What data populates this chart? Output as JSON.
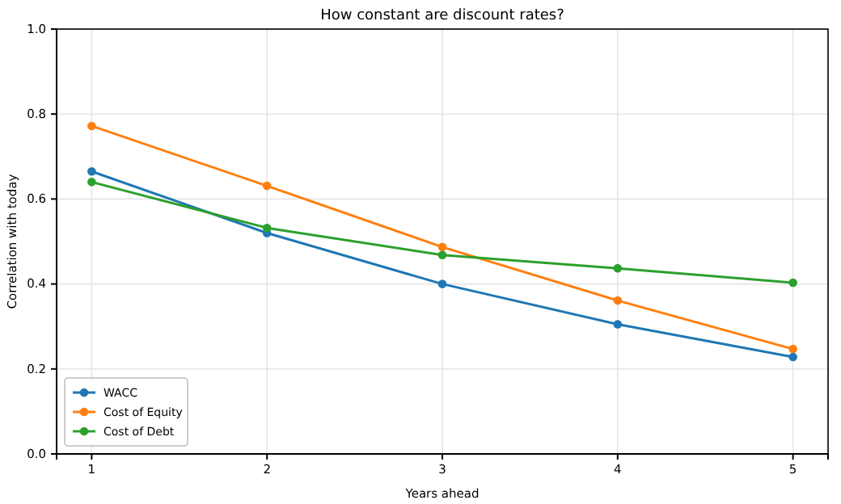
{
  "chart_data": {
    "type": "line",
    "title": "How constant are discount rates?",
    "xlabel": "Years ahead",
    "ylabel": "Correlation with today",
    "x": [
      1,
      2,
      3,
      4,
      5
    ],
    "series": [
      {
        "name": "WACC",
        "color": "#1f77b4",
        "values": [
          0.665,
          0.52,
          0.4,
          0.305,
          0.228
        ]
      },
      {
        "name": "Cost of Equity",
        "color": "#ff7f0e",
        "values": [
          0.772,
          0.631,
          0.487,
          0.361,
          0.247
        ]
      },
      {
        "name": "Cost of Debt",
        "color": "#2ca02c",
        "values": [
          0.64,
          0.532,
          0.468,
          0.437,
          0.403
        ]
      }
    ],
    "xlim": [
      0.8,
      5.2
    ],
    "xticks": [
      1,
      2,
      3,
      4,
      5
    ],
    "ylim": [
      0,
      1
    ],
    "yticks": [
      {
        "value": 0,
        "label": "0.0"
      },
      {
        "value": 0.2,
        "label": "0.2"
      },
      {
        "value": 0.4,
        "label": "0.4"
      },
      {
        "value": 0.6,
        "label": "0.6"
      },
      {
        "value": 0.8,
        "label": "0.8"
      },
      {
        "value": 1,
        "label": "1.0"
      }
    ],
    "grid": true,
    "legend": "bottom left",
    "marker": "circle",
    "line_style": "solid"
  }
}
